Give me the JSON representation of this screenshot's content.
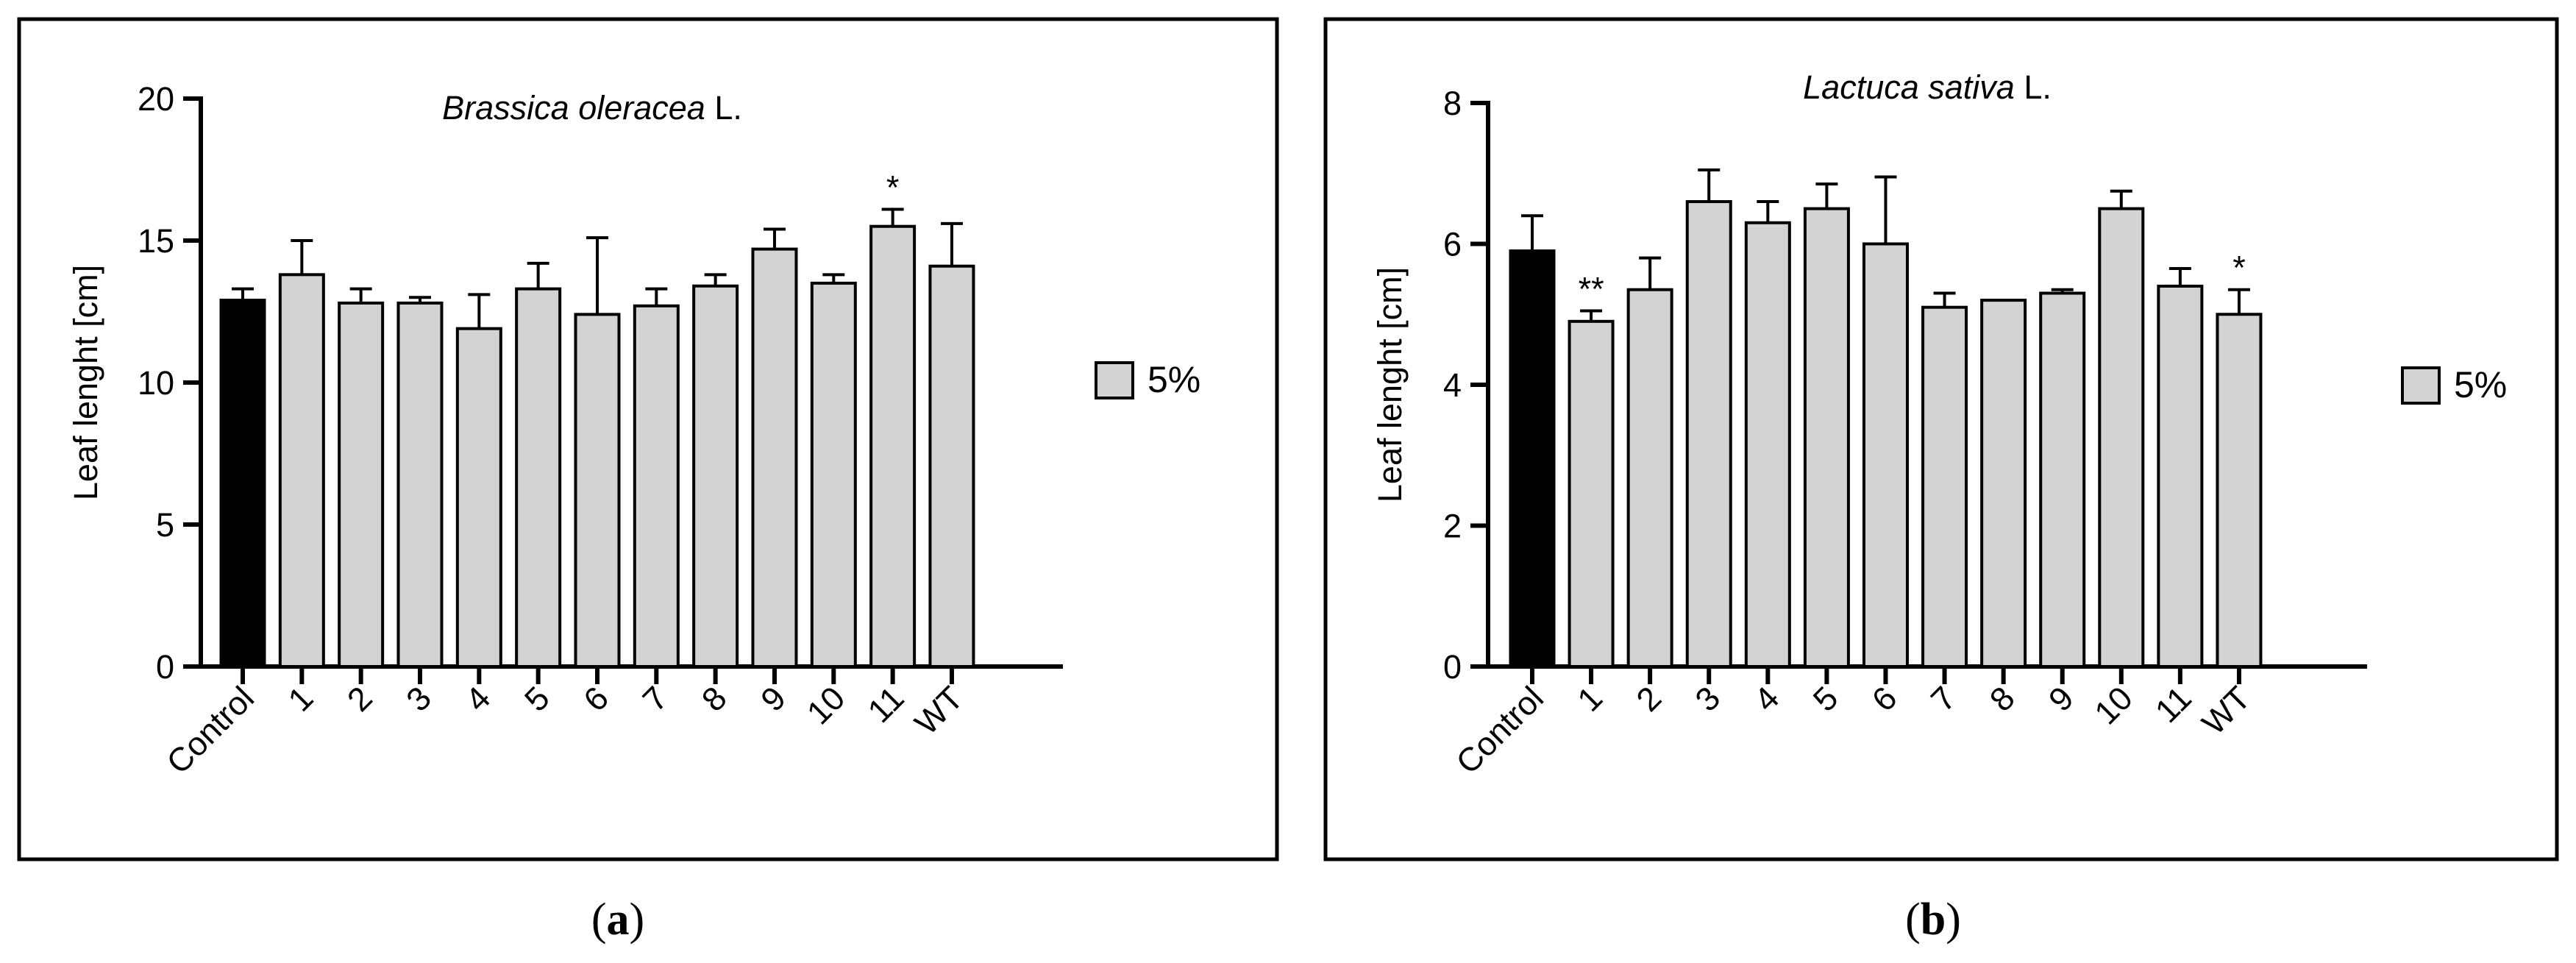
{
  "chart_data": [
    {
      "type": "bar",
      "panel_label": "(a)",
      "panel_letter": "a",
      "title_italic": "Brassica oleracea",
      "title_rest": " L.",
      "ylabel": "Leaf lenght [cm]",
      "xlabel": "",
      "ylim": [
        0,
        20
      ],
      "yticks": [
        0,
        5,
        10,
        15,
        20
      ],
      "categories": [
        "Control",
        "1",
        "2",
        "3",
        "4",
        "5",
        "6",
        "7",
        "8",
        "9",
        "10",
        "11",
        "WT"
      ],
      "series": [
        {
          "name": "5%",
          "values": [
            12.9,
            13.8,
            12.8,
            12.8,
            11.9,
            13.3,
            12.4,
            12.7,
            13.4,
            14.7,
            13.5,
            15.5,
            14.1
          ],
          "errors": [
            0.4,
            1.2,
            0.5,
            0.2,
            1.2,
            0.9,
            2.7,
            0.6,
            0.4,
            0.7,
            0.3,
            0.6,
            1.5
          ],
          "significance": [
            "",
            "",
            "",
            "",
            "",
            "",
            "",
            "",
            "",
            "",
            "",
            "*",
            ""
          ]
        }
      ],
      "colors": [
        "#000000",
        "#d3d3d3",
        "#d3d3d3",
        "#d3d3d3",
        "#d3d3d3",
        "#d3d3d3",
        "#d3d3d3",
        "#d3d3d3",
        "#d3d3d3",
        "#d3d3d3",
        "#d3d3d3",
        "#d3d3d3",
        "#d3d3d3"
      ],
      "legend": [
        {
          "label": "5%",
          "color": "#d3d3d3"
        }
      ],
      "legend_position": "right"
    },
    {
      "type": "bar",
      "panel_label": "(b)",
      "panel_letter": "b",
      "title_italic": "Lactuca sativa",
      "title_rest": " L.",
      "ylabel": "Leaf lenght [cm]",
      "xlabel": "",
      "ylim": [
        0,
        8
      ],
      "yticks": [
        0,
        2,
        4,
        6,
        8
      ],
      "categories": [
        "Control",
        "1",
        "2",
        "3",
        "4",
        "5",
        "6",
        "7",
        "8",
        "9",
        "10",
        "11",
        "WT"
      ],
      "series": [
        {
          "name": "5%",
          "values": [
            5.9,
            4.9,
            5.35,
            6.6,
            6.3,
            6.5,
            6.0,
            5.1,
            5.2,
            5.3,
            6.5,
            5.4,
            5.0
          ],
          "errors": [
            0.5,
            0.15,
            0.45,
            0.45,
            0.3,
            0.35,
            0.95,
            0.2,
            0.0,
            0.05,
            0.25,
            0.25,
            0.35
          ],
          "significance": [
            "",
            "**",
            "",
            "",
            "",
            "",
            "",
            "",
            "",
            "",
            "",
            "",
            "*"
          ]
        }
      ],
      "colors": [
        "#000000",
        "#d3d3d3",
        "#d3d3d3",
        "#d3d3d3",
        "#d3d3d3",
        "#d3d3d3",
        "#d3d3d3",
        "#d3d3d3",
        "#d3d3d3",
        "#d3d3d3",
        "#d3d3d3",
        "#d3d3d3",
        "#d3d3d3"
      ],
      "legend": [
        {
          "label": "5%",
          "color": "#d3d3d3"
        }
      ],
      "legend_position": "right"
    }
  ]
}
